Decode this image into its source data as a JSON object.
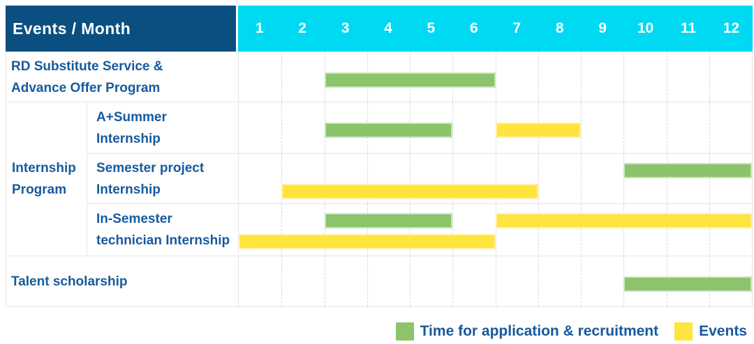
{
  "title": "Events / Month",
  "months": [
    "1",
    "2",
    "3",
    "4",
    "5",
    "6",
    "7",
    "8",
    "9",
    "10",
    "11",
    "12"
  ],
  "colors": {
    "header_bg": "#0b4f80",
    "month_header_bg": "#00d9f2",
    "application_green": "#8bc46a",
    "events_yellow": "#ffe33f",
    "label_text_blue": "#175a9d"
  },
  "group_column": {
    "label": "Internship Program",
    "lines": [
      "Internship",
      "Program"
    ]
  },
  "rows": [
    {
      "group": null,
      "label_lines": [
        "RD Substitute Service &",
        "Advance Offer Program"
      ],
      "layout": "single",
      "bars": [
        {
          "type": "application",
          "start": 3,
          "end": 6,
          "line": 0
        }
      ]
    },
    {
      "group": "Internship Program",
      "label_lines": [
        "A+Summer",
        "Internship"
      ],
      "layout": "single",
      "bars": [
        {
          "type": "application",
          "start": 3,
          "end": 5,
          "line": 0
        },
        {
          "type": "events",
          "start": 7,
          "end": 8,
          "line": 0
        }
      ]
    },
    {
      "group": "Internship Program",
      "label_lines": [
        "Semester project",
        "Internship"
      ],
      "layout": "double",
      "bars": [
        {
          "type": "application",
          "start": 10,
          "end": 12,
          "line": 0
        },
        {
          "type": "events",
          "start": 2,
          "end": 7,
          "line": 1
        }
      ]
    },
    {
      "group": "Internship Program",
      "label_lines": [
        "In-Semester",
        "technician Internship"
      ],
      "layout": "double",
      "bars": [
        {
          "type": "application",
          "start": 3,
          "end": 5,
          "line": 0
        },
        {
          "type": "events",
          "start": 7,
          "end": 12,
          "line": 0
        },
        {
          "type": "events",
          "start": 1,
          "end": 6,
          "line": 1
        }
      ]
    },
    {
      "group": null,
      "label_lines": [
        "Talent scholarship"
      ],
      "layout": "single",
      "bars": [
        {
          "type": "application",
          "start": 10,
          "end": 12,
          "line": 0
        }
      ]
    }
  ],
  "legend": [
    {
      "type": "application",
      "label": "Time for application & recruitment"
    },
    {
      "type": "events",
      "label": "Events"
    }
  ],
  "chart_data": {
    "type": "table",
    "subtype": "gantt",
    "title": "Events / Month",
    "x_axis": {
      "label": "Month",
      "categories": [
        1,
        2,
        3,
        4,
        5,
        6,
        7,
        8,
        9,
        10,
        11,
        12
      ]
    },
    "legend_entries": [
      "Time for application & recruitment",
      "Events"
    ],
    "legend_position": "bottom-right",
    "grid": true,
    "tasks": [
      {
        "group": null,
        "event": "RD Substitute Service & Advance Offer Program",
        "application_recruitment_month_ranges": [
          [
            3,
            6
          ]
        ],
        "events_month_ranges": []
      },
      {
        "group": "Internship Program",
        "event": "A+Summer Internship",
        "application_recruitment_month_ranges": [
          [
            3,
            5
          ]
        ],
        "events_month_ranges": [
          [
            7,
            8
          ]
        ]
      },
      {
        "group": "Internship Program",
        "event": "Semester project Internship",
        "application_recruitment_month_ranges": [
          [
            10,
            12
          ]
        ],
        "events_month_ranges": [
          [
            2,
            7
          ]
        ]
      },
      {
        "group": "Internship Program",
        "event": "In-Semester technician Internship",
        "application_recruitment_month_ranges": [
          [
            3,
            5
          ]
        ],
        "events_month_ranges": [
          [
            7,
            12
          ],
          [
            1,
            6
          ]
        ]
      },
      {
        "group": null,
        "event": "Talent scholarship",
        "application_recruitment_month_ranges": [
          [
            10,
            12
          ]
        ],
        "events_month_ranges": []
      }
    ]
  }
}
